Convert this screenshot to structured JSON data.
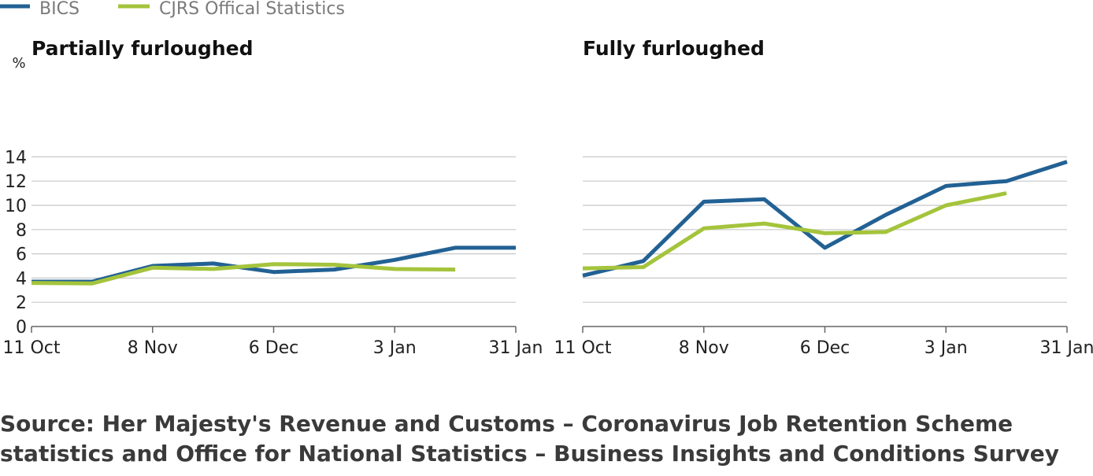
{
  "legend": [
    {
      "name": "BICS",
      "color": "#226194"
    },
    {
      "name": "CJRS Offical Statistics",
      "color": "#a4c43c"
    }
  ],
  "unit_label": "%",
  "source": {
    "line1": "Source: Her Majesty's Revenue and Customs – Coronavirus Job Retention Scheme",
    "line2": "statistics and Office for National Statistics – Business Insights and Conditions Survey"
  },
  "chart_data": [
    {
      "type": "line",
      "title": "Partially furloughed",
      "ylabel": "%",
      "ylim": [
        0,
        14
      ],
      "yticks": [
        0,
        2,
        4,
        6,
        8,
        10,
        12,
        14
      ],
      "x_tick_labels": [
        "11 Oct",
        "8 Nov",
        "6 Dec",
        "3 Jan",
        "31 Jan"
      ],
      "grid": true,
      "series": [
        {
          "name": "BICS",
          "color": "#226194",
          "x": [
            "11 Oct",
            "25 Oct",
            "8 Nov",
            "22 Nov",
            "6 Dec",
            "20 Dec",
            "3 Jan",
            "17 Jan",
            "31 Jan"
          ],
          "values": [
            3.7,
            3.7,
            5.0,
            5.2,
            4.5,
            4.7,
            5.5,
            6.5,
            6.5
          ]
        },
        {
          "name": "CJRS Offical Statistics",
          "color": "#a4c43c",
          "x": [
            "11 Oct",
            "25 Oct",
            "8 Nov",
            "22 Nov",
            "6 Dec",
            "20 Dec",
            "3 Jan",
            "17 Jan"
          ],
          "values": [
            3.6,
            3.55,
            4.85,
            4.75,
            5.15,
            5.1,
            4.75,
            4.7
          ]
        }
      ]
    },
    {
      "type": "line",
      "title": "Fully furloughed",
      "ylabel": "",
      "ylim": [
        0,
        14
      ],
      "yticks": [
        0,
        2,
        4,
        6,
        8,
        10,
        12,
        14
      ],
      "x_tick_labels": [
        "11 Oct",
        "8 Nov",
        "6 Dec",
        "3 Jan",
        "31 Jan"
      ],
      "grid": true,
      "series": [
        {
          "name": "BICS",
          "color": "#226194",
          "x": [
            "11 Oct",
            "25 Oct",
            "8 Nov",
            "22 Nov",
            "6 Dec",
            "20 Dec",
            "3 Jan",
            "17 Jan",
            "31 Jan"
          ],
          "values": [
            4.2,
            5.4,
            10.3,
            10.5,
            6.5,
            9.2,
            11.6,
            12.0,
            13.6
          ]
        },
        {
          "name": "CJRS Offical Statistics",
          "color": "#a4c43c",
          "x": [
            "11 Oct",
            "25 Oct",
            "8 Nov",
            "22 Nov",
            "6 Dec",
            "20 Dec",
            "3 Jan",
            "17 Jan"
          ],
          "values": [
            4.8,
            4.9,
            8.1,
            8.5,
            7.7,
            7.8,
            10.0,
            11.0
          ]
        }
      ]
    }
  ]
}
